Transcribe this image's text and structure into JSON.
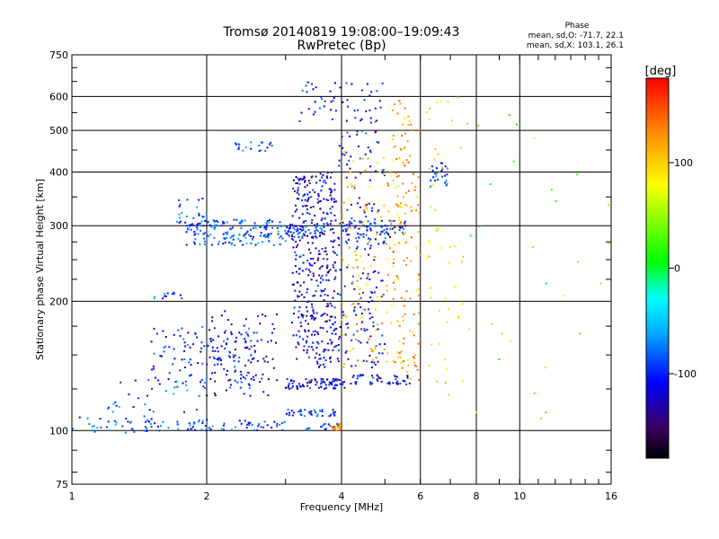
{
  "chart_data": {
    "type": "scatter",
    "title": "Tromsø 20140819 19:08:00–19:09:43",
    "subtitle": "RwPretec (Bp)",
    "xlabel": "Frequency [MHz]",
    "ylabel": "Stationary phase Virtual Height [km]",
    "x_scale": "log",
    "y_scale": "log",
    "xlim": [
      1,
      16
    ],
    "ylim": [
      75,
      750
    ],
    "x_ticks": [
      1,
      2,
      4,
      6,
      8,
      10,
      16
    ],
    "x_tick_labels": [
      "1",
      "2",
      "4",
      "6",
      "8",
      "10",
      "16"
    ],
    "y_ticks": [
      75,
      100,
      200,
      300,
      400,
      500,
      600,
      750
    ],
    "y_tick_labels": [
      "75",
      "100",
      "200",
      "300",
      "400",
      "500",
      "600",
      "750"
    ],
    "grid": true,
    "phase_stats": {
      "header": "Phase",
      "line_o": "mean, sd,O: -71.7, 22.1",
      "line_x": "mean, sd,X: 103.1, 26.1"
    },
    "colorbar": {
      "label": "[deg]",
      "ticks": [
        100,
        0,
        -100
      ],
      "tick_labels": [
        "100",
        "0",
        "-100"
      ],
      "range": [
        -180,
        180
      ],
      "colors": [
        "#000000",
        "#3a0060",
        "#0000ff",
        "#00aaff",
        "#00ffff",
        "#00ff00",
        "#ffff00",
        "#ff8800",
        "#ff0000"
      ]
    },
    "clusters": [
      {
        "x": [
          1.0,
          1.6
        ],
        "y": [
          98,
          108
        ],
        "phase": -85,
        "n": 45
      },
      {
        "x": [
          1.6,
          3.0
        ],
        "y": [
          100,
          106
        ],
        "phase": -90,
        "n": 60
      },
      {
        "x": [
          1.2,
          2.0
        ],
        "y": [
          110,
          135
        ],
        "phase": -85,
        "n": 30
      },
      {
        "x": [
          1.5,
          2.6
        ],
        "y": [
          125,
          175
        ],
        "phase": -100,
        "n": 120
      },
      {
        "x": [
          2.0,
          2.9
        ],
        "y": [
          120,
          190
        ],
        "phase": -125,
        "n": 90
      },
      {
        "x": [
          1.8,
          3.0
        ],
        "y": [
          270,
          310
        ],
        "phase": -85,
        "n": 160
      },
      {
        "x": [
          1.7,
          2.0
        ],
        "y": [
          300,
          350
        ],
        "phase": -85,
        "n": 25
      },
      {
        "x": [
          2.3,
          2.8
        ],
        "y": [
          445,
          470
        ],
        "phase": -85,
        "n": 20
      },
      {
        "x": [
          1.5,
          1.8
        ],
        "y": [
          203,
          210
        ],
        "phase": -85,
        "n": 12
      },
      {
        "x": [
          3.0,
          3.9
        ],
        "y": [
          108,
          112
        ],
        "phase": -95,
        "n": 40
      },
      {
        "x": [
          3.3,
          4.0
        ],
        "y": [
          100,
          104
        ],
        "phase": -95,
        "n": 18
      },
      {
        "x": [
          3.8,
          4.0
        ],
        "y": [
          100,
          104
        ],
        "phase": 130,
        "n": 20
      },
      {
        "x": [
          3.0,
          4.2
        ],
        "y": [
          125,
          132
        ],
        "phase": -115,
        "n": 80
      },
      {
        "x": [
          4.2,
          5.7
        ],
        "y": [
          128,
          135
        ],
        "phase": -115,
        "n": 45
      },
      {
        "x": [
          3.1,
          3.9
        ],
        "y": [
          140,
          400
        ],
        "phase": -120,
        "n": 380
      },
      {
        "x": [
          3.9,
          5.0
        ],
        "y": [
          140,
          500
        ],
        "phase": -110,
        "n": 180
      },
      {
        "x": [
          4.0,
          5.6
        ],
        "y": [
          140,
          460
        ],
        "phase": 110,
        "n": 150
      },
      {
        "x": [
          5.2,
          6.0
        ],
        "y": [
          130,
          600
        ],
        "phase": 120,
        "n": 120
      },
      {
        "x": [
          3.2,
          5.0
        ],
        "y": [
          520,
          650
        ],
        "phase": -110,
        "n": 55
      },
      {
        "x": [
          3.0,
          5.6
        ],
        "y": [
          280,
          310
        ],
        "phase": -100,
        "n": 120
      },
      {
        "x": [
          6.3,
          6.9
        ],
        "y": [
          370,
          420
        ],
        "phase": -90,
        "n": 25
      },
      {
        "x": [
          6.2,
          7.5
        ],
        "y": [
          120,
          620
        ],
        "phase": 80,
        "n": 50
      },
      {
        "x": [
          7.5,
          16.0
        ],
        "y": [
          90,
          560
        ],
        "phase": 40,
        "n": 30
      }
    ]
  }
}
